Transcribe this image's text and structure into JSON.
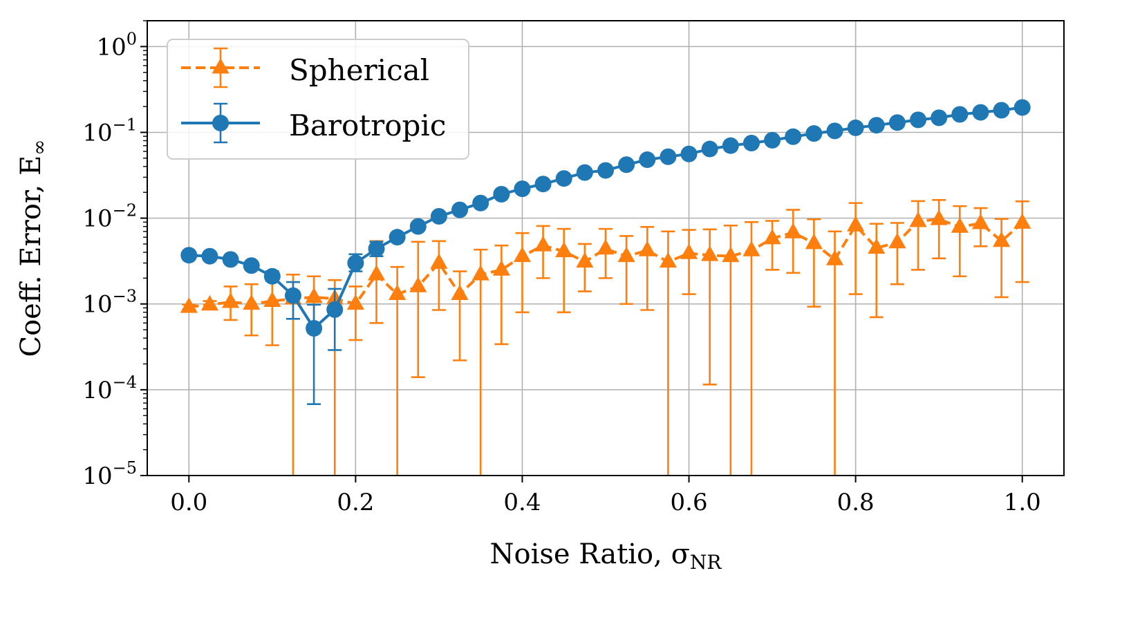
{
  "chart_data": {
    "type": "line",
    "xlabel": "Noise Ratio, σ",
    "xlabel_sub": "NR",
    "ylabel": "Coeff. Error, E",
    "ylabel_sub": "∞",
    "yscale": "log",
    "xlim": [
      -0.05,
      1.05
    ],
    "ylim": [
      1e-05,
      2
    ],
    "grid": true,
    "legend_position": "top-left",
    "x_ticks": [
      0.0,
      0.2,
      0.4,
      0.6,
      0.8,
      1.0
    ],
    "x_tick_labels": [
      "0.0",
      "0.2",
      "0.4",
      "0.6",
      "0.8",
      "1.0"
    ],
    "y_ticks": [
      1e-05,
      0.0001,
      0.001,
      0.01,
      0.1,
      1
    ],
    "y_tick_labels": [
      {
        "base": "10",
        "exp": "−5"
      },
      {
        "base": "10",
        "exp": "−4"
      },
      {
        "base": "10",
        "exp": "−3"
      },
      {
        "base": "10",
        "exp": "−2"
      },
      {
        "base": "10",
        "exp": "−1"
      },
      {
        "base": "10",
        "exp": "0"
      }
    ],
    "x": [
      0.0,
      0.025,
      0.05,
      0.075,
      0.1,
      0.125,
      0.15,
      0.175,
      0.2,
      0.225,
      0.25,
      0.275,
      0.3,
      0.325,
      0.35,
      0.375,
      0.4,
      0.425,
      0.45,
      0.475,
      0.5,
      0.525,
      0.55,
      0.575,
      0.6,
      0.625,
      0.65,
      0.675,
      0.7,
      0.725,
      0.75,
      0.775,
      0.8,
      0.825,
      0.85,
      0.875,
      0.9,
      0.925,
      0.95,
      0.975,
      1.0
    ],
    "series": [
      {
        "name": "Spherical",
        "color": "#ff7f0e",
        "marker": "triangle",
        "linestyle": "dashed",
        "values": [
          0.00092,
          0.00098,
          0.00105,
          0.001,
          0.00108,
          0.00115,
          0.0012,
          0.00115,
          0.001,
          0.0022,
          0.0013,
          0.0016,
          0.003,
          0.0013,
          0.0022,
          0.0025,
          0.0036,
          0.0048,
          0.0041,
          0.0031,
          0.0044,
          0.0036,
          0.0042,
          0.0031,
          0.0039,
          0.0037,
          0.0036,
          0.0042,
          0.0058,
          0.0068,
          0.0051,
          0.0033,
          0.0082,
          0.0045,
          0.0052,
          0.0092,
          0.0097,
          0.0079,
          0.0087,
          0.0054,
          0.0088
        ],
        "err_low": [
          0.00086,
          0.0009,
          0.00065,
          0.00043,
          0.00033,
          0,
          0.00046,
          0,
          0.00038,
          0.0006,
          0,
          0.00014,
          0.00085,
          0.00022,
          0,
          0.00034,
          0.0008,
          0.002,
          0.0008,
          0.0014,
          0.002,
          0.001,
          0.00085,
          0,
          0.0013,
          0.000115,
          0,
          0,
          0.0025,
          0.0023,
          0.00093,
          0,
          0.0013,
          0.0007,
          0.0017,
          0.0025,
          0.0034,
          0.0021,
          0.0047,
          0.0012,
          0.0018
        ],
        "err_high": [
          0.00098,
          0.00108,
          0.0016,
          0.0017,
          0.0022,
          0.0022,
          0.0021,
          0.0019,
          0.0016,
          0.0054,
          0.0027,
          0.0053,
          0.0054,
          0.0024,
          0.0043,
          0.0048,
          0.0067,
          0.0081,
          0.0075,
          0.005,
          0.0075,
          0.0062,
          0.0079,
          0.007,
          0.0073,
          0.0074,
          0.0082,
          0.009,
          0.0093,
          0.0125,
          0.0097,
          0.007,
          0.015,
          0.0086,
          0.0088,
          0.0158,
          0.0163,
          0.0138,
          0.0131,
          0.0098,
          0.0157
        ]
      },
      {
        "name": "Barotropic",
        "color": "#1f77b4",
        "marker": "circle",
        "linestyle": "solid",
        "values": [
          0.0037,
          0.0036,
          0.0033,
          0.0028,
          0.0021,
          0.00125,
          0.00052,
          0.00086,
          0.003,
          0.0044,
          0.006,
          0.008,
          0.0105,
          0.0125,
          0.015,
          0.019,
          0.022,
          0.025,
          0.029,
          0.034,
          0.036,
          0.042,
          0.048,
          0.052,
          0.056,
          0.064,
          0.07,
          0.075,
          0.081,
          0.089,
          0.097,
          0.104,
          0.113,
          0.121,
          0.13,
          0.14,
          0.148,
          0.162,
          0.171,
          0.181,
          0.195
        ],
        "err_low": [
          0.0037,
          0.0036,
          0.0033,
          0.0028,
          0.00185,
          0.00067,
          6.8e-05,
          0.00029,
          0.0024,
          0.0036,
          0.006,
          0.008,
          0.0105,
          0.0125,
          0.015,
          0.019,
          0.022,
          0.025,
          0.029,
          0.034,
          0.036,
          0.042,
          0.048,
          0.052,
          0.056,
          0.064,
          0.07,
          0.075,
          0.081,
          0.089,
          0.097,
          0.104,
          0.113,
          0.121,
          0.13,
          0.14,
          0.148,
          0.162,
          0.171,
          0.181,
          0.195
        ],
        "err_high": [
          0.0037,
          0.0036,
          0.0033,
          0.0028,
          0.0024,
          0.0018,
          0.00098,
          0.0015,
          0.0038,
          0.0053,
          0.006,
          0.008,
          0.0105,
          0.0125,
          0.015,
          0.019,
          0.022,
          0.025,
          0.029,
          0.034,
          0.036,
          0.042,
          0.048,
          0.052,
          0.056,
          0.064,
          0.07,
          0.075,
          0.081,
          0.089,
          0.097,
          0.104,
          0.113,
          0.121,
          0.13,
          0.14,
          0.148,
          0.162,
          0.171,
          0.181,
          0.195
        ]
      }
    ]
  }
}
